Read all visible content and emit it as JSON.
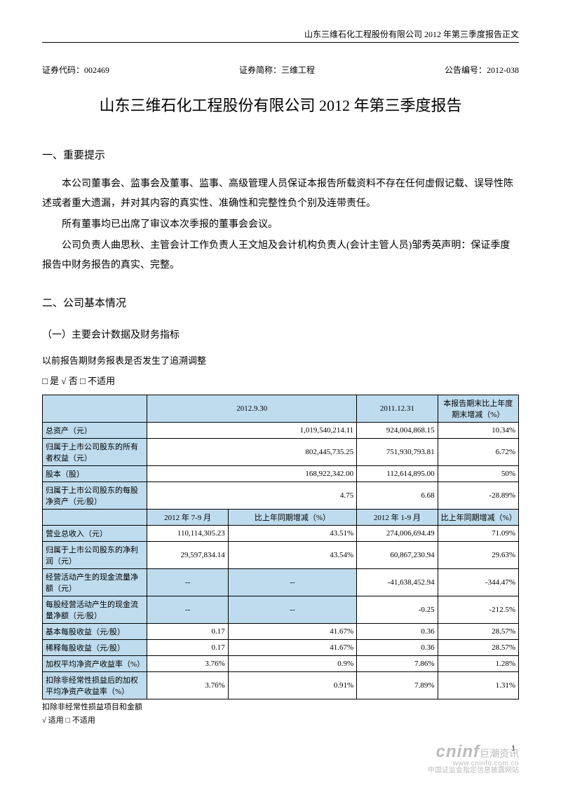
{
  "header": {
    "running_head": "山东三维石化工程股份有限公司 2012 年第三季度报告正文"
  },
  "meta": {
    "code_label": "证券代码：",
    "code_value": "002469",
    "short_label": "证券简称：",
    "short_value": "三维工程",
    "ann_label": "公告编号：",
    "ann_value": "2012-038"
  },
  "title": "山东三维石化工程股份有限公司  2012 年第三季度报告",
  "sec1": {
    "heading": "一、重要提示",
    "p1": "本公司董事会、监事会及董事、监事、高级管理人员保证本报告所载资料不存在任何虚假记载、误导性陈述或者重大遗漏，并对其内容的真实性、准确性和完整性负个别及连带责任。",
    "p2": "所有董事均已出席了审议本次季报的董事会会议。",
    "p3": "公司负责人曲思秋、主管会计工作负责人王文旭及会计机构负责人(会计主管人员)邹秀英声明：保证季度报告中财务报告的真实、完整。"
  },
  "sec2": {
    "heading": "二、公司基本情况",
    "sub1": "（一）主要会计数据及财务指标",
    "q_retro": "以前报告期财务报表是否发生了追溯调整",
    "q_retro_ans": "□ 是 √ 否 □ 不适用"
  },
  "table": {
    "head1": {
      "c1": "2012.9.30",
      "c2": "2011.12.31",
      "c3": "本报告期末比上年度期末增减（%）"
    },
    "rows1": [
      {
        "label": "总资产（元）",
        "a": "1,019,540,214.11",
        "b": "924,004,868.15",
        "c": "10.34%"
      },
      {
        "label": "归属于上市公司股东的所有者权益（元）",
        "a": "802,445,735.25",
        "b": "751,930,793.81",
        "c": "6.72%"
      },
      {
        "label": "股本（股）",
        "a": "168,922,342.00",
        "b": "112,614,895.00",
        "c": "50%"
      },
      {
        "label": "归属于上市公司股东的每股净资产（元/股）",
        "a": "4.75",
        "b": "6.68",
        "c": "-28.89%"
      }
    ],
    "head2": {
      "c1": "2012 年 7-9 月",
      "c2": "比上年同期增减（%）",
      "c3": "2012 年 1-9 月",
      "c4": "比上年同期增减（%）"
    },
    "rows2": [
      {
        "label": "营业总收入（元）",
        "a": "110,114,305.23",
        "b": "43.51%",
        "c": "274,006,694.49",
        "d": "71.09%"
      },
      {
        "label": "归属于上市公司股东的净利润（元）",
        "a": "29,597,834.14",
        "b": "43.54%",
        "c": "60,867,230.94",
        "d": "29.63%"
      },
      {
        "label": "经营活动产生的现金流量净额（元）",
        "a": "--",
        "b": "--",
        "c": "-41,638,452.94",
        "d": "-344.47%",
        "shade": true
      },
      {
        "label": "每股经营活动产生的现金流量净额（元/股）",
        "a": "--",
        "b": "--",
        "c": "-0.25",
        "d": "-212.5%",
        "shade": true
      },
      {
        "label": "基本每股收益（元/股）",
        "a": "0.17",
        "b": "41.67%",
        "c": "0.36",
        "d": "28.57%"
      },
      {
        "label": "稀释每股收益（元/股）",
        "a": "0.17",
        "b": "41.67%",
        "c": "0.36",
        "d": "28.57%"
      },
      {
        "label": "加权平均净资产收益率（%）",
        "a": "3.76%",
        "b": "0.9%",
        "c": "7.86%",
        "d": "1.28%"
      },
      {
        "label": "扣除非经常性损益后的加权平均净资产收益率（%）",
        "a": "3.76%",
        "b": "0.91%",
        "c": "7.89%",
        "d": "1.31%"
      }
    ]
  },
  "footnotes": {
    "l1": "扣除非经常性损益项目和金额",
    "l2": "√ 适用 □ 不适用"
  },
  "page_number": "1",
  "watermark": {
    "brand": "cninf",
    "cn": "巨潮资讯",
    "url": "www.cninfo.com.cn",
    "sub": "中国证监会指定信息披露网站"
  },
  "colors": {
    "header_bg": "#bfdcee",
    "border": "#000000",
    "text": "#000000",
    "watermark": "#bbbbbb"
  }
}
